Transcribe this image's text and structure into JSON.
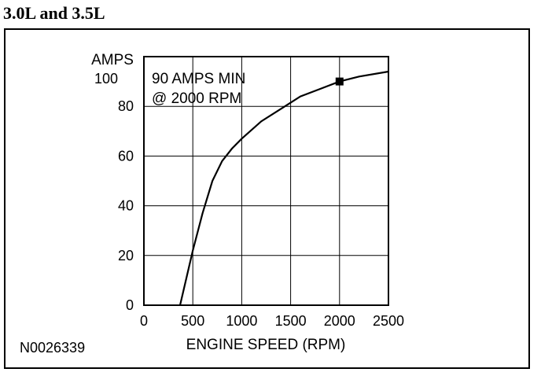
{
  "heading": "3.0L and 3.5L",
  "figure_id": "N0026339",
  "chart_data": {
    "type": "line",
    "title": "",
    "xlabel": "ENGINE SPEED (RPM)",
    "ylabel": "AMPS",
    "xlim": [
      0,
      2500
    ],
    "ylim": [
      0,
      100
    ],
    "x_ticks": [
      0,
      500,
      1000,
      1500,
      2000,
      2500
    ],
    "y_ticks": [
      0,
      20,
      40,
      60,
      80,
      100
    ],
    "grid": true,
    "series": [
      {
        "x": [
          370,
          500,
          600,
          700,
          800,
          900,
          1000,
          1200,
          1400,
          1600,
          1800,
          2000,
          2200,
          2500
        ],
        "y": [
          0,
          22,
          37,
          50,
          58,
          63,
          67,
          74,
          79,
          84,
          87,
          90,
          92,
          94
        ]
      }
    ],
    "marker": {
      "x": 2000,
      "y": 90
    },
    "annotation": [
      "90 AMPS MIN",
      "@ 2000 RPM"
    ]
  }
}
